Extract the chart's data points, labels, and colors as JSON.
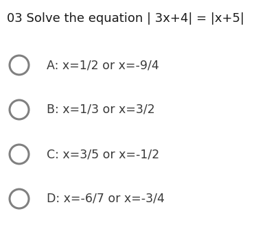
{
  "title": "03 Solve the equation | 3x+4| = |x+5|",
  "title_fontsize": 13.0,
  "title_color": "#1a1a1a",
  "options": [
    "A: x=1/2 or x=-9/4",
    "B: x=1/3 or x=3/2",
    "C: x=3/5 or x=-1/2",
    "D: x=-6/7 or x=-3/4"
  ],
  "option_fontsize": 12.5,
  "option_color": "#3a3a3a",
  "circle_edge_color": "#808080",
  "circle_face_color": "#ffffff",
  "circle_linewidth": 2.2,
  "background_color": "#ffffff",
  "fig_width": 4.08,
  "fig_height": 3.37,
  "dpi": 100
}
